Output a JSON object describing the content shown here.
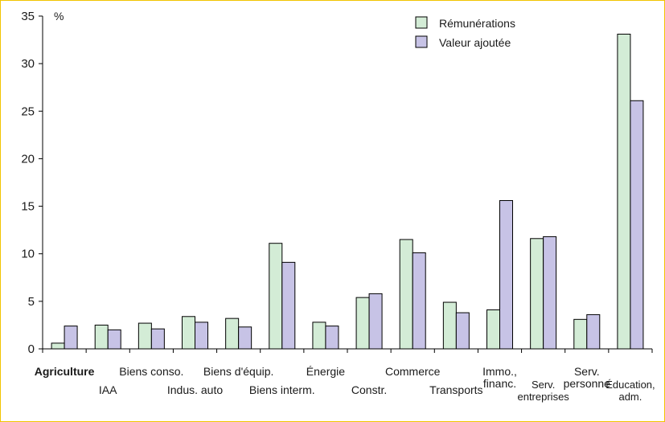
{
  "chart_data": {
    "type": "bar",
    "ylabel": "%",
    "ylim": [
      0,
      35
    ],
    "yticks": [
      0,
      5,
      10,
      15,
      20,
      25,
      30,
      35
    ],
    "grid": false,
    "legend_position": "top-right",
    "categories": [
      [
        "Agriculture"
      ],
      [
        "IAA"
      ],
      [
        "Biens conso."
      ],
      [
        "Indus. auto"
      ],
      [
        "Biens d'équip."
      ],
      [
        "Biens interm."
      ],
      [
        "Énergie"
      ],
      [
        "Constr."
      ],
      [
        "Commerce"
      ],
      [
        "Transports"
      ],
      [
        "Immo.,",
        "financ."
      ],
      [
        "Serv.",
        "entreprises"
      ],
      [
        "Serv.",
        "personne"
      ],
      [
        "Éducation,",
        "adm."
      ]
    ],
    "series": [
      {
        "name": "Rémunérations",
        "color": "#d3ecd6",
        "values": [
          0.6,
          2.5,
          2.7,
          3.4,
          3.2,
          11.1,
          2.8,
          5.4,
          11.5,
          4.9,
          4.1,
          11.6,
          3.1,
          33.1
        ]
      },
      {
        "name": "Valeur ajoutée",
        "color": "#c7c3e6",
        "values": [
          2.4,
          2.0,
          2.1,
          2.8,
          2.3,
          9.1,
          2.4,
          5.8,
          10.1,
          3.8,
          15.6,
          11.8,
          3.6,
          26.1
        ]
      }
    ]
  }
}
